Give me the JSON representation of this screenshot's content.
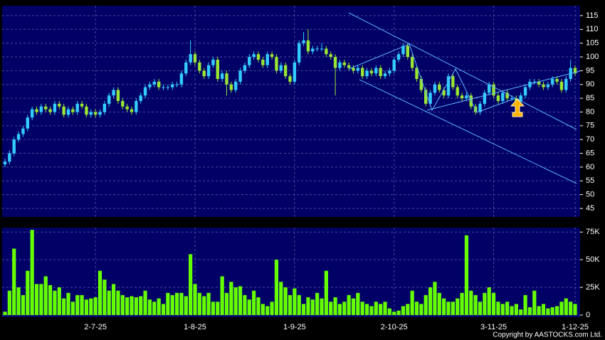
{
  "chart_data": {
    "type": "candlestick",
    "categories": [
      null,
      null,
      null,
      null,
      null,
      null,
      null,
      null,
      null,
      null,
      null,
      null,
      null,
      null,
      null,
      null,
      null,
      null,
      null,
      null,
      "2-7-25",
      null,
      null,
      null,
      null,
      null,
      null,
      null,
      null,
      null,
      null,
      null,
      null,
      null,
      null,
      null,
      null,
      null,
      null,
      null,
      null,
      null,
      "1-8-25",
      null,
      null,
      null,
      null,
      null,
      null,
      null,
      null,
      null,
      null,
      null,
      null,
      null,
      null,
      null,
      null,
      null,
      null,
      null,
      null,
      null,
      "1-9-25",
      null,
      null,
      null,
      null,
      null,
      null,
      null,
      null,
      null,
      null,
      null,
      null,
      null,
      null,
      null,
      null,
      null,
      null,
      null,
      null,
      null,
      "2-10-25",
      null,
      null,
      null,
      null,
      null,
      null,
      null,
      null,
      null,
      null,
      null,
      null,
      null,
      null,
      null,
      null,
      null,
      null,
      null,
      null,
      null,
      "3-11-25",
      null,
      null,
      null,
      null,
      null,
      null,
      null,
      null,
      null,
      null,
      null,
      null,
      null,
      null,
      null,
      null,
      null,
      "1-12-25"
    ],
    "ohlc": [
      [
        61,
        63,
        60,
        62
      ],
      [
        62,
        66,
        61,
        65
      ],
      [
        65,
        71,
        64,
        70
      ],
      [
        70,
        73,
        69,
        72
      ],
      [
        72,
        75,
        71,
        74
      ],
      [
        74,
        79,
        73,
        78
      ],
      [
        78,
        82,
        77,
        81
      ],
      [
        81,
        82,
        79,
        80
      ],
      [
        80,
        83,
        79,
        82
      ],
      [
        82,
        83,
        80,
        81
      ],
      [
        81,
        82,
        79,
        80
      ],
      [
        80,
        84,
        79,
        83
      ],
      [
        83,
        84,
        81,
        82
      ],
      [
        82,
        83,
        78,
        79
      ],
      [
        79,
        82,
        78,
        81
      ],
      [
        81,
        82,
        79,
        80
      ],
      [
        80,
        84,
        79,
        83
      ],
      [
        83,
        84,
        81,
        82
      ],
      [
        82,
        83,
        78,
        79
      ],
      [
        79,
        81,
        78,
        80
      ],
      [
        80,
        81,
        78,
        79
      ],
      [
        79,
        81,
        78,
        80
      ],
      [
        80,
        84,
        79,
        83
      ],
      [
        83,
        87,
        82,
        86
      ],
      [
        86,
        89,
        85,
        88
      ],
      [
        88,
        89,
        83,
        84
      ],
      [
        84,
        85,
        81,
        82
      ],
      [
        82,
        83,
        80,
        81
      ],
      [
        81,
        82,
        79,
        80
      ],
      [
        80,
        85,
        79,
        84
      ],
      [
        84,
        87,
        83,
        86
      ],
      [
        86,
        90,
        85,
        89
      ],
      [
        89,
        91,
        88,
        90
      ],
      [
        90,
        92,
        89,
        91
      ],
      [
        91,
        92,
        88,
        89
      ],
      [
        89,
        90,
        88,
        89
      ],
      [
        89,
        90,
        88,
        89
      ],
      [
        89,
        91,
        88,
        90
      ],
      [
        90,
        91,
        89,
        90
      ],
      [
        90,
        95,
        89,
        94
      ],
      [
        94,
        99,
        93,
        98
      ],
      [
        98,
        106,
        97,
        101
      ],
      [
        101,
        102,
        97,
        98
      ],
      [
        98,
        99,
        94,
        95
      ],
      [
        95,
        96,
        92,
        93
      ],
      [
        93,
        98,
        92,
        97
      ],
      [
        97,
        100,
        96,
        99
      ],
      [
        99,
        100,
        91,
        92
      ],
      [
        92,
        95,
        91,
        94
      ],
      [
        94,
        95,
        86,
        90
      ],
      [
        90,
        91,
        87,
        88
      ],
      [
        88,
        92,
        87,
        91
      ],
      [
        91,
        96,
        90,
        95
      ],
      [
        95,
        98,
        94,
        97
      ],
      [
        97,
        101,
        96,
        100
      ],
      [
        100,
        102,
        99,
        101
      ],
      [
        101,
        102,
        98,
        99
      ],
      [
        99,
        100,
        96,
        97
      ],
      [
        97,
        102,
        96,
        101
      ],
      [
        101,
        102,
        99,
        100
      ],
      [
        100,
        101,
        94,
        95
      ],
      [
        95,
        98,
        94,
        97
      ],
      [
        97,
        98,
        92,
        93
      ],
      [
        93,
        94,
        90,
        91
      ],
      [
        91,
        99,
        90,
        98
      ],
      [
        98,
        106,
        97,
        105
      ],
      [
        105,
        109,
        104,
        106
      ],
      [
        106,
        110,
        101,
        102
      ],
      [
        102,
        104,
        101,
        103
      ],
      [
        103,
        104,
        102,
        103
      ],
      [
        103,
        105,
        102,
        103
      ],
      [
        103,
        104,
        100,
        101
      ],
      [
        101,
        102,
        99,
        100
      ],
      [
        100,
        101,
        86,
        96
      ],
      [
        96,
        99,
        95,
        98
      ],
      [
        98,
        99,
        96,
        97
      ],
      [
        97,
        98,
        95,
        96
      ],
      [
        96,
        97,
        94,
        95
      ],
      [
        95,
        97,
        94,
        96
      ],
      [
        96,
        97,
        92,
        93
      ],
      [
        93,
        96,
        92,
        95
      ],
      [
        95,
        96,
        93,
        94
      ],
      [
        94,
        97,
        93,
        96
      ],
      [
        96,
        97,
        92,
        93
      ],
      [
        93,
        95,
        92,
        94
      ],
      [
        94,
        96,
        93,
        95
      ],
      [
        95,
        100,
        94,
        99
      ],
      [
        99,
        102,
        98,
        101
      ],
      [
        101,
        105,
        100,
        104
      ],
      [
        104,
        105,
        99,
        100
      ],
      [
        100,
        101,
        95,
        96
      ],
      [
        96,
        97,
        91,
        92
      ],
      [
        92,
        93,
        87,
        88
      ],
      [
        88,
        89,
        82,
        83
      ],
      [
        83,
        88,
        82,
        87
      ],
      [
        87,
        91,
        86,
        90
      ],
      [
        90,
        91,
        87,
        88
      ],
      [
        88,
        89,
        85,
        86
      ],
      [
        86,
        94,
        85,
        93
      ],
      [
        93,
        94,
        88,
        89
      ],
      [
        89,
        90,
        85,
        86
      ],
      [
        86,
        87,
        84,
        85
      ],
      [
        85,
        87,
        84,
        86
      ],
      [
        86,
        87,
        81,
        82
      ],
      [
        82,
        83,
        79,
        80
      ],
      [
        80,
        84,
        79,
        83
      ],
      [
        83,
        88,
        82,
        87
      ],
      [
        87,
        91,
        86,
        90
      ],
      [
        90,
        91,
        85,
        86
      ],
      [
        86,
        87,
        83,
        84
      ],
      [
        84,
        88,
        83,
        87
      ],
      [
        87,
        88,
        84,
        85
      ],
      [
        85,
        86,
        84,
        85
      ],
      [
        85,
        86,
        83,
        84
      ],
      [
        84,
        87,
        83,
        86
      ],
      [
        86,
        90,
        85,
        89
      ],
      [
        89,
        92,
        88,
        91
      ],
      [
        91,
        92,
        90,
        91
      ],
      [
        91,
        92,
        89,
        90
      ],
      [
        90,
        91,
        88,
        89
      ],
      [
        89,
        91,
        88,
        90
      ],
      [
        90,
        93,
        89,
        92
      ],
      [
        92,
        93,
        90,
        91
      ],
      [
        91,
        92,
        87,
        88
      ],
      [
        88,
        93,
        87,
        92
      ],
      [
        92,
        99,
        91,
        96
      ],
      [
        96,
        97,
        93,
        94
      ]
    ],
    "volume": [
      3000,
      22000,
      60000,
      25000,
      18000,
      40000,
      77000,
      28000,
      28000,
      35000,
      27000,
      22000,
      25000,
      15000,
      20000,
      12000,
      18000,
      18000,
      14000,
      15000,
      16000,
      40000,
      32000,
      22000,
      28000,
      22000,
      18000,
      16000,
      17000,
      16000,
      17000,
      22000,
      14000,
      12000,
      15000,
      10000,
      20000,
      18000,
      20000,
      20000,
      17000,
      55000,
      28000,
      20000,
      17000,
      20000,
      12000,
      12000,
      35000,
      20000,
      30000,
      25000,
      26000,
      18000,
      14000,
      22000,
      16000,
      10000,
      8000,
      12000,
      50000,
      30000,
      25000,
      18000,
      24000,
      18000,
      10000,
      16000,
      14000,
      20000,
      15000,
      40000,
      12000,
      16000,
      10000,
      12000,
      18000,
      15000,
      20000,
      12000,
      10000,
      8000,
      12000,
      10000,
      12000,
      6000,
      3000,
      4000,
      8000,
      10000,
      22000,
      12000,
      10000,
      18000,
      25000,
      30000,
      20000,
      15000,
      12000,
      12000,
      15000,
      20000,
      72000,
      22000,
      18000,
      12000,
      20000,
      25000,
      20000,
      12000,
      10000,
      12000,
      8000,
      10000,
      5000,
      18000,
      7000,
      22000,
      8000,
      10000,
      6000,
      7000,
      8000,
      12000,
      15000,
      12000,
      10000
    ],
    "up_color": "#33ccff",
    "down_color": "#99e633",
    "volume_color": "#66ff00",
    "ylim": [
      41.9,
      118.6
    ],
    "yticks": [
      45,
      50,
      55,
      60,
      65,
      70,
      75,
      80,
      85,
      90,
      95,
      100,
      105,
      110,
      115
    ],
    "volume_ylim": [
      -2000,
      79000
    ],
    "volume_yticks": [
      0,
      {
        "value": 25000,
        "label": "25K"
      },
      {
        "value": 50000,
        "label": "50K"
      },
      {
        "value": 75000,
        "label": "75K"
      }
    ],
    "grid": true
  },
  "copyright": "Copyright by AASTOCKS.com Ltd."
}
